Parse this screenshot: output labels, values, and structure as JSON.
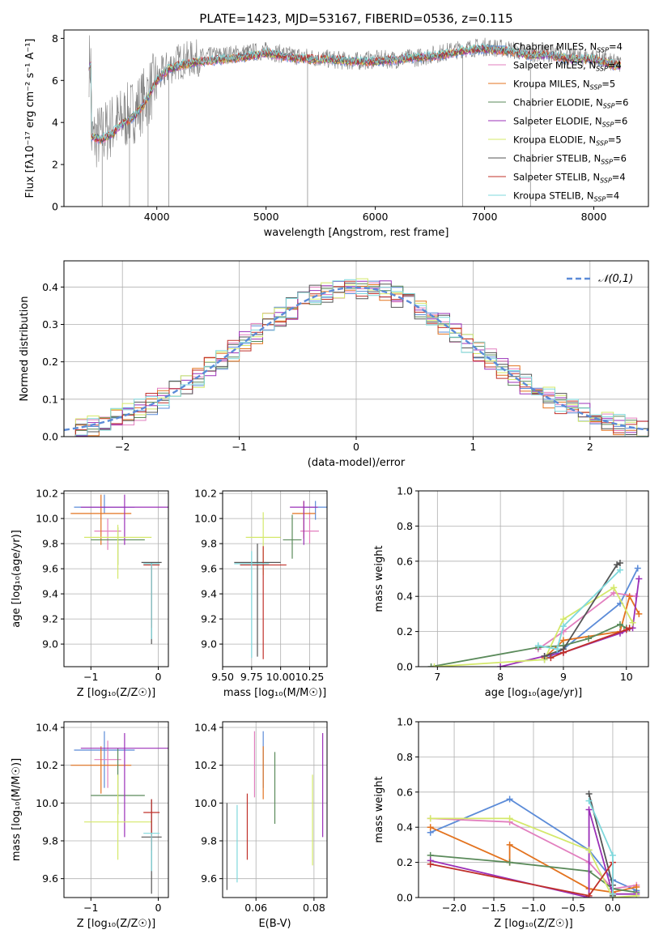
{
  "colors": {
    "Chabrier MILES": "#5b8bd8",
    "Salpeter MILES": "#e27fbf",
    "Kroupa MILES": "#e3731f",
    "Chabrier ELODIE": "#5a8a5a",
    "Salpeter ELODIE": "#9b30b8",
    "Kroupa ELODIE": "#d4e86a",
    "Chabrier STELIB": "#555555",
    "Salpeter STELIB": "#c0302a",
    "Kroupa STELIB": "#7fd8dc"
  },
  "chart_data": [
    {
      "id": "spectrum",
      "type": "line",
      "title": "PLATE=1423, MJD=53167, FIBERID=0536, z=0.115",
      "xlabel": "wavelength [Angstrom, rest frame]",
      "ylabel": "Flux [fλ10⁻¹⁷ erg cm⁻² s⁻¹ A⁻¹]",
      "xlim": [
        3150,
        8500
      ],
      "ylim": [
        0,
        8.4
      ],
      "xticks": [
        4000,
        5000,
        6000,
        7000,
        8000
      ],
      "yticks": [
        0,
        2,
        4,
        6,
        8
      ],
      "legend_position": "upper-right",
      "legend": [
        {
          "label": "Chabrier MILES, N_SSP=4",
          "model": "Chabrier MILES"
        },
        {
          "label": "Salpeter MILES, N_SSP=4",
          "model": "Salpeter MILES"
        },
        {
          "label": "Kroupa MILES, N_SSP=5",
          "model": "Kroupa MILES"
        },
        {
          "label": "Chabrier ELODIE, N_SSP=6",
          "model": "Chabrier ELODIE"
        },
        {
          "label": "Salpeter ELODIE, N_SSP=6",
          "model": "Salpeter ELODIE"
        },
        {
          "label": "Kroupa ELODIE, N_SSP=5",
          "model": "Kroupa ELODIE"
        },
        {
          "label": "Chabrier STELIB, N_SSP=6",
          "model": "Chabrier STELIB"
        },
        {
          "label": "Salpeter STELIB, N_SSP=4",
          "model": "Salpeter STELIB"
        },
        {
          "label": "Kroupa STELIB, N_SSP=4",
          "model": "Kroupa STELIB"
        }
      ],
      "data_curve": {
        "x": [
          3400,
          3500,
          3600,
          3700,
          3800,
          3900,
          4000,
          4100,
          4200,
          4400,
          4600,
          4800,
          5000,
          5200,
          5400,
          5600,
          5800,
          6000,
          6200,
          6400,
          6600,
          6800,
          7000,
          7200,
          7400,
          7600,
          7800,
          8000,
          8200
        ],
        "y": [
          3.2,
          3.4,
          3.9,
          4.2,
          4.6,
          5.2,
          6.0,
          6.6,
          6.9,
          7.1,
          7.2,
          7.3,
          7.4,
          7.2,
          7.1,
          7.0,
          6.9,
          7.0,
          7.0,
          7.1,
          7.3,
          7.5,
          7.6,
          7.5,
          7.3,
          7.3,
          7.1,
          7.1,
          6.8
        ]
      },
      "model_curve": {
        "x": [
          3400,
          3500,
          3600,
          3700,
          3800,
          3900,
          4000,
          4100,
          4200,
          4400,
          4600,
          4800,
          5000,
          5200,
          5400,
          5600,
          5800,
          6000,
          6200,
          6400,
          6600,
          6800,
          7000,
          7200,
          7400,
          7600,
          7800,
          8000,
          8200
        ],
        "y": [
          3.3,
          3.2,
          3.5,
          4.0,
          4.3,
          5.0,
          6.0,
          6.5,
          6.7,
          6.9,
          7.0,
          7.1,
          7.3,
          7.1,
          7.0,
          7.0,
          6.9,
          6.9,
          7.0,
          7.1,
          7.2,
          7.4,
          7.5,
          7.4,
          7.2,
          7.2,
          7.0,
          7.0,
          6.7
        ]
      }
    },
    {
      "id": "residuals",
      "type": "histogram",
      "xlabel": "(data-model)/error",
      "ylabel": "Normed distribution",
      "xlim": [
        -2.5,
        2.5
      ],
      "ylim": [
        0,
        0.47
      ],
      "xticks": [
        -2,
        -1,
        0,
        1,
        2
      ],
      "yticks": [
        0.0,
        0.1,
        0.2,
        0.3,
        0.4
      ],
      "legend": [
        "𝒩(0,1)"
      ],
      "legend_position": "upper-right",
      "grid": true
    },
    {
      "id": "age-vs-Z",
      "type": "errorbar",
      "xlabel": "Z [log₁₀(Z/Z☉)]",
      "ylabel": "age  [log₁₀(age/yr)]",
      "xlim": [
        -1.4,
        0.15
      ],
      "ylim": [
        8.82,
        10.22
      ],
      "xticks": [
        -1,
        0
      ],
      "yticks": [
        9.0,
        9.2,
        9.4,
        9.6,
        9.8,
        10.0,
        10.2
      ],
      "points": [
        {
          "model": "Chabrier MILES",
          "x": -0.8,
          "xerr": [
            0.45,
            0.45
          ],
          "y": 10.09,
          "yerr": [
            0.05,
            0.1
          ]
        },
        {
          "model": "Salpeter MILES",
          "x": -0.75,
          "xerr": [
            0.2,
            0.2
          ],
          "y": 9.9,
          "yerr": [
            0.15,
            0.1
          ]
        },
        {
          "model": "Kroupa MILES",
          "x": -0.85,
          "xerr": [
            0.45,
            0.45
          ],
          "y": 10.04,
          "yerr": [
            0.25,
            0.15
          ]
        },
        {
          "model": "Chabrier ELODIE",
          "x": -0.6,
          "xerr": [
            0.4,
            0.4
          ],
          "y": 9.83,
          "yerr": [
            0.2,
            0.1
          ]
        },
        {
          "model": "Salpeter ELODIE",
          "x": -0.5,
          "xerr": [
            0.65,
            0.65
          ],
          "y": 10.09,
          "yerr": [
            0.3,
            0.1
          ]
        },
        {
          "model": "Kroupa ELODIE",
          "x": -0.6,
          "xerr": [
            0.5,
            0.5
          ],
          "y": 9.85,
          "yerr": [
            0.33,
            0.1
          ]
        },
        {
          "model": "Chabrier STELIB",
          "x": -0.1,
          "xerr": [
            0.15,
            0.15
          ],
          "y": 9.65,
          "yerr": [
            0.65,
            0.0
          ]
        },
        {
          "model": "Salpeter STELIB",
          "x": -0.1,
          "xerr": [
            0.12,
            0.12
          ],
          "y": 9.63,
          "yerr": [
            0.5,
            0.0
          ]
        },
        {
          "model": "Kroupa STELIB",
          "x": -0.1,
          "xerr": [
            0.12,
            0.12
          ],
          "y": 9.64,
          "yerr": [
            0.6,
            0.0
          ]
        }
      ]
    },
    {
      "id": "age-vs-mass",
      "type": "errorbar",
      "xlabel": "mass [log₁₀(M/M☉)]",
      "ylabel": "",
      "xlim": [
        9.5,
        10.4
      ],
      "ylim": [
        8.82,
        10.22
      ],
      "xticks": [
        9.5,
        9.75,
        10.0,
        10.25
      ],
      "xticklabels": [
        "9.50",
        "9.75",
        "10.00",
        "10.25"
      ],
      "yticks": [
        9.0,
        9.2,
        9.4,
        9.6,
        9.8,
        10.0,
        10.2
      ],
      "points": [
        {
          "model": "Chabrier MILES",
          "x": 10.3,
          "xerr": [
            0.1,
            0.1
          ],
          "y": 10.09,
          "yerr": [
            0.1,
            0.05
          ]
        },
        {
          "model": "Salpeter MILES",
          "x": 10.25,
          "xerr": [
            0.08,
            0.08
          ],
          "y": 9.9,
          "yerr": [
            0.1,
            0.15
          ]
        },
        {
          "model": "Kroupa MILES",
          "x": 10.2,
          "xerr": [
            0.1,
            0.1
          ],
          "y": 10.04,
          "yerr": [
            0.2,
            0.1
          ]
        },
        {
          "model": "Chabrier ELODIE",
          "x": 10.1,
          "xerr": [
            0.08,
            0.08
          ],
          "y": 9.83,
          "yerr": [
            0.15,
            0.2
          ]
        },
        {
          "model": "Salpeter ELODIE",
          "x": 10.2,
          "xerr": [
            0.12,
            0.12
          ],
          "y": 10.09,
          "yerr": [
            0.3,
            0.05
          ]
        },
        {
          "model": "Kroupa ELODIE",
          "x": 9.85,
          "xerr": [
            0.15,
            0.15
          ],
          "y": 9.85,
          "yerr": [
            0.3,
            0.2
          ]
        },
        {
          "model": "Chabrier STELIB",
          "x": 9.8,
          "xerr": [
            0.2,
            0.2
          ],
          "y": 9.65,
          "yerr": [
            0.75,
            0.15
          ]
        },
        {
          "model": "Salpeter STELIB",
          "x": 9.85,
          "xerr": [
            0.2,
            0.2
          ],
          "y": 9.63,
          "yerr": [
            0.75,
            0.15
          ]
        },
        {
          "model": "Kroupa STELIB",
          "x": 9.75,
          "xerr": [
            0.15,
            0.15
          ],
          "y": 9.64,
          "yerr": [
            0.75,
            0.1
          ]
        }
      ]
    },
    {
      "id": "massweight-vs-age",
      "type": "line",
      "xlabel": "age  [log₁₀(age/yr)]",
      "ylabel": "mass weight",
      "xlim": [
        6.7,
        10.35
      ],
      "ylim": [
        0,
        1
      ],
      "xticks": [
        7,
        8,
        9,
        10
      ],
      "yticks": [
        0.0,
        0.2,
        0.4,
        0.6,
        0.8,
        1.0
      ],
      "grid": true,
      "series": [
        {
          "model": "Chabrier MILES",
          "x": [
            8.7,
            9.0,
            9.9,
            10.18
          ],
          "y": [
            0.04,
            0.1,
            0.36,
            0.56
          ]
        },
        {
          "model": "Salpeter MILES",
          "x": [
            8.6,
            9.0,
            9.8,
            10.15
          ],
          "y": [
            0.1,
            0.2,
            0.42,
            0.4
          ]
        },
        {
          "model": "Kroupa MILES",
          "x": [
            8.7,
            9.0,
            9.9,
            10.05,
            10.2
          ],
          "y": [
            0.05,
            0.15,
            0.2,
            0.4,
            0.3
          ]
        },
        {
          "model": "Chabrier ELODIE",
          "x": [
            6.9,
            8.6,
            9.0,
            9.4,
            9.9,
            10.0
          ],
          "y": [
            0.0,
            0.11,
            0.12,
            0.16,
            0.24,
            0.22
          ]
        },
        {
          "model": "Salpeter ELODIE",
          "x": [
            8.0,
            8.7,
            9.0,
            9.9,
            10.1,
            10.2
          ],
          "y": [
            0.0,
            0.06,
            0.08,
            0.19,
            0.22,
            0.5
          ]
        },
        {
          "model": "Kroupa ELODIE",
          "x": [
            6.95,
            8.7,
            9.0,
            9.8,
            10.1
          ],
          "y": [
            0.0,
            0.04,
            0.27,
            0.45,
            0.25
          ]
        },
        {
          "model": "Chabrier STELIB",
          "x": [
            8.7,
            9.0,
            9.85,
            9.9
          ],
          "y": [
            0.06,
            0.1,
            0.58,
            0.59
          ]
        },
        {
          "model": "Salpeter STELIB",
          "x": [
            8.8,
            9.0,
            10.0,
            10.05
          ],
          "y": [
            0.05,
            0.08,
            0.21,
            0.22
          ]
        },
        {
          "model": "Kroupa STELIB",
          "x": [
            8.6,
            8.9,
            9.0,
            9.9
          ],
          "y": [
            0.12,
            0.1,
            0.23,
            0.55
          ]
        }
      ]
    },
    {
      "id": "mass-vs-Z",
      "type": "errorbar",
      "xlabel": "Z [log₁₀(Z/Z☉)]",
      "ylabel": "mass [log₁₀(M/M☉)]",
      "xlim": [
        -1.4,
        0.15
      ],
      "ylim": [
        9.5,
        10.43
      ],
      "xticks": [
        -1,
        0
      ],
      "yticks": [
        9.6,
        9.8,
        10.0,
        10.2,
        10.4
      ],
      "points": [
        {
          "model": "Chabrier MILES",
          "x": -0.8,
          "xerr": [
            0.45,
            0.45
          ],
          "y": 10.28,
          "yerr": [
            0.2,
            0.1
          ]
        },
        {
          "model": "Salpeter MILES",
          "x": -0.75,
          "xerr": [
            0.2,
            0.2
          ],
          "y": 10.23,
          "yerr": [
            0.15,
            0.1
          ]
        },
        {
          "model": "Kroupa MILES",
          "x": -0.85,
          "xerr": [
            0.45,
            0.45
          ],
          "y": 10.2,
          "yerr": [
            0.15,
            0.1
          ]
        },
        {
          "model": "Chabrier ELODIE",
          "x": -0.6,
          "xerr": [
            0.4,
            0.4
          ],
          "y": 10.04,
          "yerr": [
            0.1,
            0.25
          ]
        },
        {
          "model": "Salpeter ELODIE",
          "x": -0.5,
          "xerr": [
            0.65,
            0.65
          ],
          "y": 10.29,
          "yerr": [
            0.47,
            0.08
          ]
        },
        {
          "model": "Kroupa ELODIE",
          "x": -0.6,
          "xerr": [
            0.5,
            0.5
          ],
          "y": 9.9,
          "yerr": [
            0.2,
            0.25
          ]
        },
        {
          "model": "Chabrier STELIB",
          "x": -0.1,
          "xerr": [
            0.15,
            0.15
          ],
          "y": 9.82,
          "yerr": [
            0.3,
            0.2
          ]
        },
        {
          "model": "Salpeter STELIB",
          "x": -0.1,
          "xerr": [
            0.12,
            0.12
          ],
          "y": 9.95,
          "yerr": [
            0.2,
            0.07
          ]
        },
        {
          "model": "Kroupa STELIB",
          "x": -0.1,
          "xerr": [
            0.12,
            0.12
          ],
          "y": 9.84,
          "yerr": [
            0.2,
            0.0
          ]
        }
      ]
    },
    {
      "id": "mass-vs-ebv",
      "type": "errorbar",
      "xlabel": "E(B-V)",
      "ylabel": "",
      "xlim": [
        0.0485,
        0.0845
      ],
      "ylim": [
        9.5,
        10.43
      ],
      "xticks": [
        0.06,
        0.08
      ],
      "yticks": [
        9.6,
        9.8,
        10.0,
        10.2,
        10.4
      ],
      "points": [
        {
          "model": "Chabrier MILES",
          "x": 0.0625,
          "y": 10.28,
          "yerr": [
            0.2,
            0.1
          ]
        },
        {
          "model": "Salpeter MILES",
          "x": 0.0595,
          "y": 10.23,
          "yerr": [
            0.2,
            0.15
          ]
        },
        {
          "model": "Kroupa MILES",
          "x": 0.0625,
          "y": 10.2,
          "yerr": [
            0.18,
            0.1
          ]
        },
        {
          "model": "Chabrier ELODIE",
          "x": 0.0665,
          "y": 10.04,
          "yerr": [
            0.15,
            0.23
          ]
        },
        {
          "model": "Salpeter ELODIE",
          "x": 0.083,
          "y": 10.29,
          "yerr": [
            0.47,
            0.08
          ]
        },
        {
          "model": "Kroupa ELODIE",
          "x": 0.0795,
          "y": 9.9,
          "yerr": [
            0.23,
            0.25
          ]
        },
        {
          "model": "Chabrier STELIB",
          "x": 0.05,
          "y": 9.82,
          "yerr": [
            0.28,
            0.18
          ]
        },
        {
          "model": "Salpeter STELIB",
          "x": 0.057,
          "y": 9.95,
          "yerr": [
            0.25,
            0.1
          ]
        },
        {
          "model": "Kroupa STELIB",
          "x": 0.0535,
          "y": 9.84,
          "yerr": [
            0.26,
            0.15
          ]
        }
      ]
    },
    {
      "id": "massweight-vs-Z",
      "type": "line",
      "xlabel": "Z [log₁₀(Z/Z☉)]",
      "ylabel": "mass weight",
      "xlim": [
        -2.45,
        0.45
      ],
      "ylim": [
        0,
        1
      ],
      "xticks": [
        -2.0,
        -1.5,
        -1.0,
        -0.5,
        0.0
      ],
      "xticklabels": [
        "−2.0",
        "−1.5",
        "−1.0",
        "−0.5",
        "0.0"
      ],
      "yticks": [
        0.0,
        0.2,
        0.4,
        0.6,
        0.8,
        1.0
      ],
      "grid": true,
      "series": [
        {
          "model": "Chabrier MILES",
          "x": [
            -2.3,
            -1.3,
            -0.3,
            0.0,
            0.3
          ],
          "y": [
            0.37,
            0.56,
            0.27,
            0.1,
            0.04
          ]
        },
        {
          "model": "Salpeter MILES",
          "x": [
            -2.3,
            -1.3,
            -0.3,
            0.0,
            0.3
          ],
          "y": [
            0.45,
            0.43,
            0.2,
            0.05,
            0.07
          ]
        },
        {
          "model": "Kroupa MILES",
          "x": [
            -2.3,
            -1.3,
            -1.3,
            -0.3,
            0.0,
            0.3
          ],
          "y": [
            0.4,
            0.2,
            0.3,
            0.05,
            0.03,
            0.06
          ]
        },
        {
          "model": "Chabrier ELODIE",
          "x": [
            -2.3,
            -1.3,
            -0.3,
            0.0,
            0.3
          ],
          "y": [
            0.24,
            0.2,
            0.15,
            0.05,
            0.03
          ]
        },
        {
          "model": "Salpeter ELODIE",
          "x": [
            -2.3,
            -0.3,
            -0.3,
            0.0,
            0.3
          ],
          "y": [
            0.21,
            0.0,
            0.5,
            0.02,
            0.02
          ]
        },
        {
          "model": "Kroupa ELODIE",
          "x": [
            -2.3,
            -1.3,
            -0.3,
            0.0,
            0.3
          ],
          "y": [
            0.45,
            0.45,
            0.27,
            0.0,
            0.01
          ]
        },
        {
          "model": "Chabrier STELIB",
          "x": [
            -0.3,
            0.0,
            0.0
          ],
          "y": [
            0.59,
            0.07,
            0.01
          ]
        },
        {
          "model": "Salpeter STELIB",
          "x": [
            -2.3,
            -0.3,
            0.0,
            0.0
          ],
          "y": [
            0.19,
            0.01,
            0.2,
            0.02
          ]
        },
        {
          "model": "Kroupa STELIB",
          "x": [
            -0.3,
            0.0,
            0.0
          ],
          "y": [
            0.55,
            0.24,
            0.02
          ]
        }
      ]
    }
  ]
}
